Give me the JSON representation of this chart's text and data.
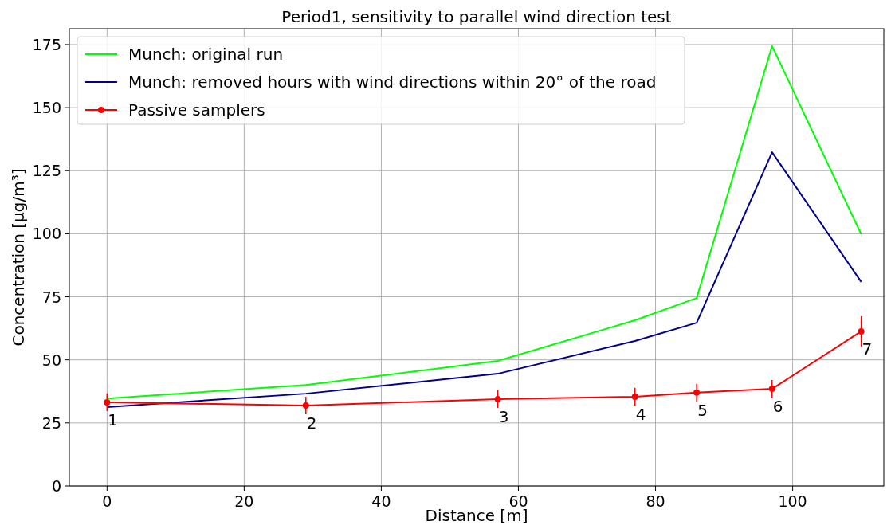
{
  "chart_data": {
    "type": "line",
    "title": "Period1, sensitivity to parallel wind direction test",
    "xlabel": "Distance [m]",
    "ylabel": "Concentration [μg/m³]",
    "x": [
      0,
      29,
      57,
      77,
      86,
      97,
      110
    ],
    "series": [
      {
        "name": "Munch: original run",
        "color": "#00ff00",
        "marker": "none",
        "values": [
          34.7,
          40,
          49.6,
          65.7,
          74.5,
          174.4,
          99.8
        ]
      },
      {
        "name": "Munch: removed hours with wind directions within 20° of the road",
        "color": "#00008b",
        "marker": "none",
        "values": [
          31.3,
          36.6,
          44.5,
          57.5,
          64.7,
          132.3,
          80.9
        ]
      },
      {
        "name": "Passive samplers",
        "color": "#ff0000",
        "marker": "circle",
        "values": [
          33.2,
          31.9,
          34.4,
          35.4,
          37,
          38.5,
          61.3
        ],
        "errors": [
          3.5,
          3.5,
          3.5,
          3.5,
          3.5,
          3.5,
          6
        ]
      }
    ],
    "annotations": [
      {
        "text": "1",
        "x": 0,
        "y": 33.2
      },
      {
        "text": "2",
        "x": 29,
        "y": 31.9
      },
      {
        "text": "3",
        "x": 57,
        "y": 34.4
      },
      {
        "text": "4",
        "x": 77,
        "y": 35.4
      },
      {
        "text": "5",
        "x": 86,
        "y": 37
      },
      {
        "text": "6",
        "x": 97,
        "y": 38.5
      },
      {
        "text": "7",
        "x": 110,
        "y": 61.3
      }
    ],
    "xlim": [
      -5.5,
      113.3
    ],
    "ylim": [
      0,
      181.3
    ],
    "xticks": [
      0,
      20,
      40,
      60,
      80,
      100
    ],
    "yticks": [
      0,
      25,
      50,
      75,
      100,
      125,
      150,
      175
    ],
    "grid": true,
    "legend": "top left",
    "line_style": "solid"
  }
}
